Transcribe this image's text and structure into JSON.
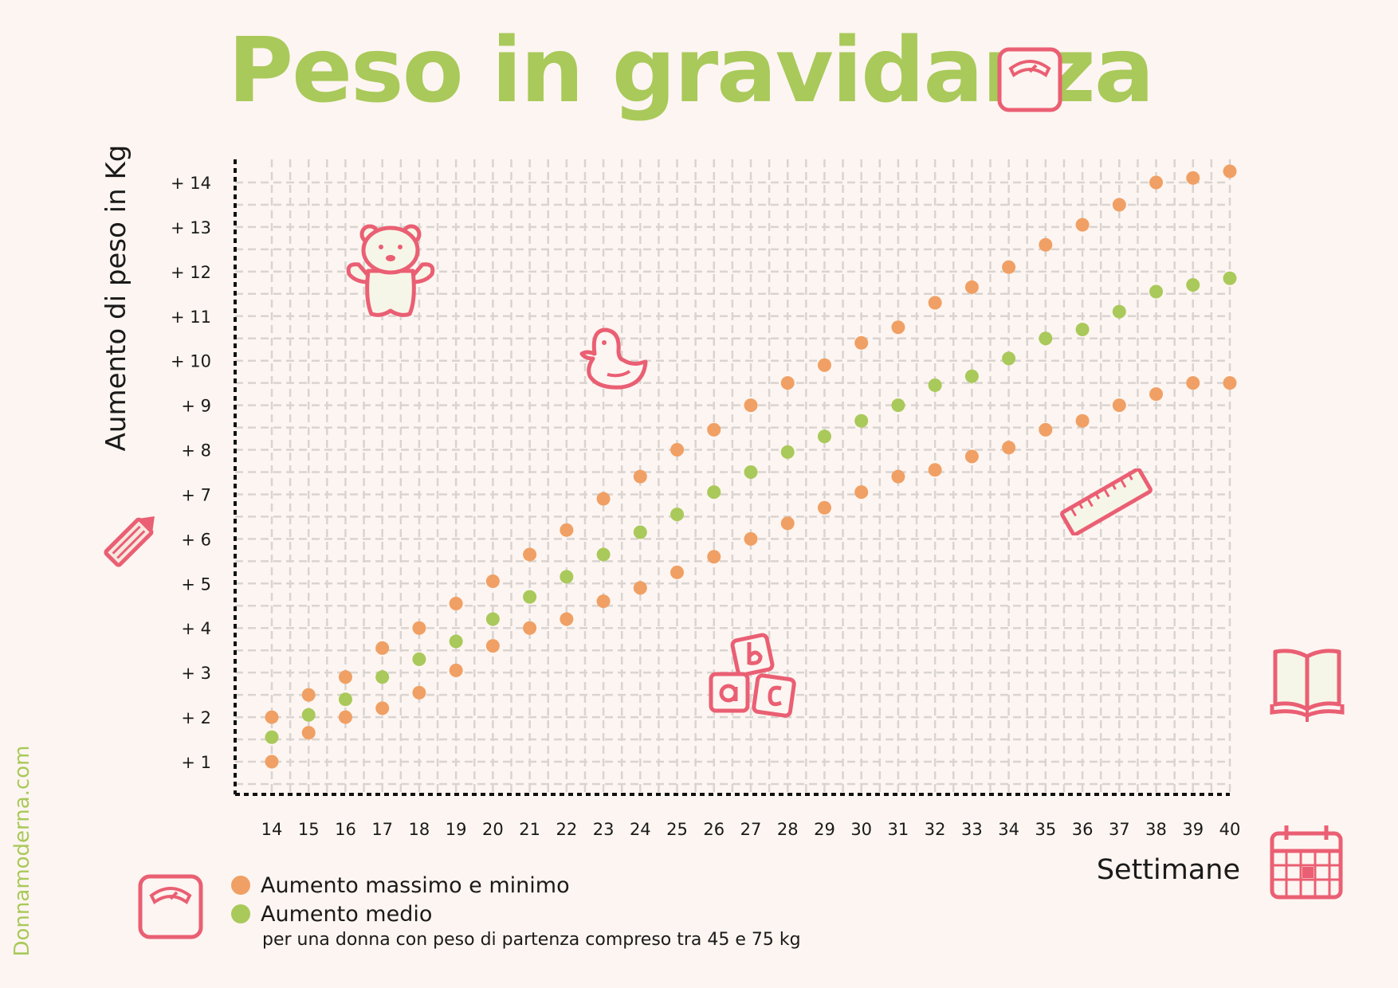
{
  "header": {
    "title": "Peso in gravidanza"
  },
  "watermark": "Donnamoderna.com",
  "colors": {
    "orange": "#f0a064",
    "green": "#a9c95a",
    "icon": "#ea5f73",
    "grid": "#d9d4d0"
  },
  "icons": [
    "scale-icon",
    "teddy-bear-icon",
    "rubber-duck-icon",
    "pencil-icon",
    "ruler-icon",
    "abc-blocks-icon",
    "book-icon",
    "calendar-icon"
  ],
  "legend": {
    "items": [
      {
        "label": "Aumento massimo e minimo",
        "color": "#f0a064"
      },
      {
        "label": "Aumento medio",
        "color": "#a9c95a"
      }
    ],
    "note": "per una donna con peso di partenza compreso tra 45 e 75 kg"
  },
  "chart_data": {
    "type": "scatter",
    "xlabel": "Settimane",
    "ylabel": "Aumento di peso in Kg",
    "x": [
      14,
      15,
      16,
      17,
      18,
      19,
      20,
      21,
      22,
      23,
      24,
      25,
      26,
      27,
      28,
      29,
      30,
      31,
      32,
      33,
      34,
      35,
      36,
      37,
      38,
      39,
      40
    ],
    "x_ticks": [
      "14",
      "15",
      "16",
      "17",
      "18",
      "19",
      "20",
      "21",
      "22",
      "23",
      "24",
      "25",
      "26",
      "27",
      "28",
      "29",
      "30",
      "31",
      "32",
      "33",
      "34",
      "35",
      "36",
      "37",
      "38",
      "39",
      "40"
    ],
    "y_ticks": [
      "+ 1",
      "+ 2",
      "+ 3",
      "+ 4",
      "+ 5",
      "+ 6",
      "+ 7",
      "+ 8",
      "+ 9",
      "+ 10",
      "+ 11",
      "+ 12",
      "+ 13",
      "+ 14"
    ],
    "y_tick_values": [
      1,
      2,
      3,
      4,
      5,
      6,
      7,
      8,
      9,
      10,
      11,
      12,
      13,
      14
    ],
    "ylim": [
      0.25,
      14.5
    ],
    "xlim": [
      13.6,
      40
    ],
    "grid": true,
    "legend_placement": "bottom-left",
    "series": [
      {
        "name": "Aumento massimo e minimo",
        "color": "#f0a064",
        "values": [
          2.0,
          2.5,
          2.9,
          3.55,
          4.0,
          4.55,
          5.05,
          5.65,
          6.2,
          6.9,
          7.4,
          8.0,
          8.45,
          9.0,
          9.5,
          9.9,
          10.4,
          10.75,
          11.3,
          11.65,
          12.1,
          12.6,
          13.05,
          13.5,
          14.0,
          14.1,
          14.25
        ]
      },
      {
        "name": "Aumento massimo e minimo",
        "color": "#f0a064",
        "values": [
          1.0,
          1.65,
          2.0,
          2.2,
          2.55,
          3.05,
          3.6,
          4.0,
          4.2,
          4.6,
          4.9,
          5.25,
          5.6,
          6.0,
          6.35,
          6.7,
          7.05,
          7.4,
          7.55,
          7.85,
          8.05,
          8.45,
          8.65,
          9.0,
          9.25,
          9.5,
          9.5
        ]
      },
      {
        "name": "Aumento medio",
        "color": "#a9c95a",
        "values": [
          1.55,
          2.05,
          2.4,
          2.9,
          3.3,
          3.7,
          4.2,
          4.7,
          5.15,
          5.65,
          6.15,
          6.55,
          7.05,
          7.5,
          7.95,
          8.3,
          8.65,
          9.0,
          9.45,
          9.65,
          10.05,
          10.5,
          10.7,
          11.1,
          11.55,
          11.7,
          11.85
        ]
      }
    ]
  }
}
